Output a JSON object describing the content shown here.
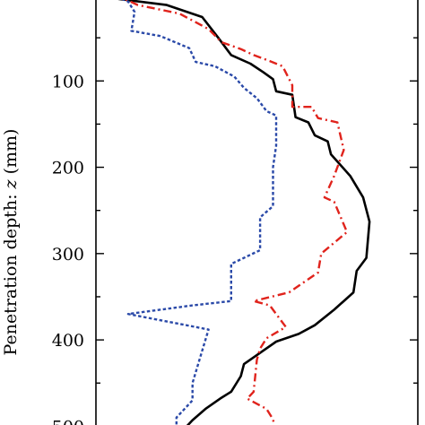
{
  "chart_data": {
    "type": "line",
    "title": "",
    "xlabel": "",
    "ylabel_prefix": "Penetration depth: ",
    "ylabel_var": "z",
    "ylabel_suffix": " (mm)",
    "ylim": [
      510,
      0
    ],
    "xlim": [
      0,
      1
    ],
    "y_ticks": [
      100,
      200,
      300,
      400,
      500
    ],
    "y_minor_ticks": [
      50,
      150,
      250,
      350,
      450
    ],
    "grid": false,
    "legend": "none",
    "series": [
      {
        "line_style": "solid",
        "color": "#000000",
        "points": [
          {
            "x": 0.05,
            "y": 0
          },
          {
            "x": 0.07,
            "y": 5
          },
          {
            "x": 0.22,
            "y": 12
          },
          {
            "x": 0.33,
            "y": 26
          },
          {
            "x": 0.38,
            "y": 50
          },
          {
            "x": 0.42,
            "y": 70
          },
          {
            "x": 0.48,
            "y": 80
          },
          {
            "x": 0.52,
            "y": 90
          },
          {
            "x": 0.55,
            "y": 98
          },
          {
            "x": 0.56,
            "y": 112
          },
          {
            "x": 0.61,
            "y": 116
          },
          {
            "x": 0.62,
            "y": 142
          },
          {
            "x": 0.66,
            "y": 148
          },
          {
            "x": 0.68,
            "y": 163
          },
          {
            "x": 0.72,
            "y": 170
          },
          {
            "x": 0.73,
            "y": 185
          },
          {
            "x": 0.79,
            "y": 210
          },
          {
            "x": 0.83,
            "y": 235
          },
          {
            "x": 0.85,
            "y": 263
          },
          {
            "x": 0.84,
            "y": 305
          },
          {
            "x": 0.81,
            "y": 320
          },
          {
            "x": 0.8,
            "y": 345
          },
          {
            "x": 0.74,
            "y": 365
          },
          {
            "x": 0.68,
            "y": 383
          },
          {
            "x": 0.63,
            "y": 393
          },
          {
            "x": 0.56,
            "y": 402
          },
          {
            "x": 0.46,
            "y": 428
          },
          {
            "x": 0.45,
            "y": 442
          },
          {
            "x": 0.42,
            "y": 460
          },
          {
            "x": 0.39,
            "y": 467
          },
          {
            "x": 0.34,
            "y": 480
          },
          {
            "x": 0.3,
            "y": 493
          },
          {
            "x": 0.27,
            "y": 505
          },
          {
            "x": 0.26,
            "y": 510
          }
        ]
      },
      {
        "line_style": "dash-dot",
        "color": "#e0231c",
        "points": [
          {
            "x": 0.06,
            "y": 0
          },
          {
            "x": 0.13,
            "y": 12
          },
          {
            "x": 0.26,
            "y": 22
          },
          {
            "x": 0.35,
            "y": 40
          },
          {
            "x": 0.39,
            "y": 55
          },
          {
            "x": 0.45,
            "y": 63
          },
          {
            "x": 0.49,
            "y": 70
          },
          {
            "x": 0.54,
            "y": 77
          },
          {
            "x": 0.58,
            "y": 83
          },
          {
            "x": 0.61,
            "y": 105
          },
          {
            "x": 0.61,
            "y": 130
          },
          {
            "x": 0.67,
            "y": 130
          },
          {
            "x": 0.69,
            "y": 143
          },
          {
            "x": 0.75,
            "y": 148
          },
          {
            "x": 0.77,
            "y": 180
          },
          {
            "x": 0.74,
            "y": 210
          },
          {
            "x": 0.71,
            "y": 235
          },
          {
            "x": 0.74,
            "y": 240
          },
          {
            "x": 0.78,
            "y": 275
          },
          {
            "x": 0.7,
            "y": 300
          },
          {
            "x": 0.69,
            "y": 322
          },
          {
            "x": 0.6,
            "y": 345
          },
          {
            "x": 0.49,
            "y": 355
          },
          {
            "x": 0.54,
            "y": 360
          },
          {
            "x": 0.56,
            "y": 370
          },
          {
            "x": 0.59,
            "y": 385
          },
          {
            "x": 0.53,
            "y": 398
          },
          {
            "x": 0.51,
            "y": 410
          },
          {
            "x": 0.5,
            "y": 423
          },
          {
            "x": 0.49,
            "y": 460
          },
          {
            "x": 0.47,
            "y": 468
          },
          {
            "x": 0.53,
            "y": 480
          },
          {
            "x": 0.55,
            "y": 492
          },
          {
            "x": 0.56,
            "y": 510
          }
        ]
      },
      {
        "line_style": "dotted",
        "color": "#2a49a8",
        "points": [
          {
            "x": 0.05,
            "y": 0
          },
          {
            "x": 0.1,
            "y": 8
          },
          {
            "x": 0.12,
            "y": 20
          },
          {
            "x": 0.11,
            "y": 42
          },
          {
            "x": 0.2,
            "y": 48
          },
          {
            "x": 0.29,
            "y": 62
          },
          {
            "x": 0.31,
            "y": 78
          },
          {
            "x": 0.37,
            "y": 83
          },
          {
            "x": 0.43,
            "y": 95
          },
          {
            "x": 0.46,
            "y": 108
          },
          {
            "x": 0.5,
            "y": 120
          },
          {
            "x": 0.53,
            "y": 135
          },
          {
            "x": 0.56,
            "y": 140
          },
          {
            "x": 0.56,
            "y": 175
          },
          {
            "x": 0.55,
            "y": 200
          },
          {
            "x": 0.55,
            "y": 245
          },
          {
            "x": 0.51,
            "y": 258
          },
          {
            "x": 0.51,
            "y": 296
          },
          {
            "x": 0.42,
            "y": 312
          },
          {
            "x": 0.42,
            "y": 355
          },
          {
            "x": 0.3,
            "y": 360
          },
          {
            "x": 0.1,
            "y": 370
          },
          {
            "x": 0.35,
            "y": 388
          },
          {
            "x": 0.34,
            "y": 400
          },
          {
            "x": 0.3,
            "y": 450
          },
          {
            "x": 0.3,
            "y": 470
          },
          {
            "x": 0.25,
            "y": 490
          },
          {
            "x": 0.25,
            "y": 510
          }
        ]
      }
    ]
  }
}
